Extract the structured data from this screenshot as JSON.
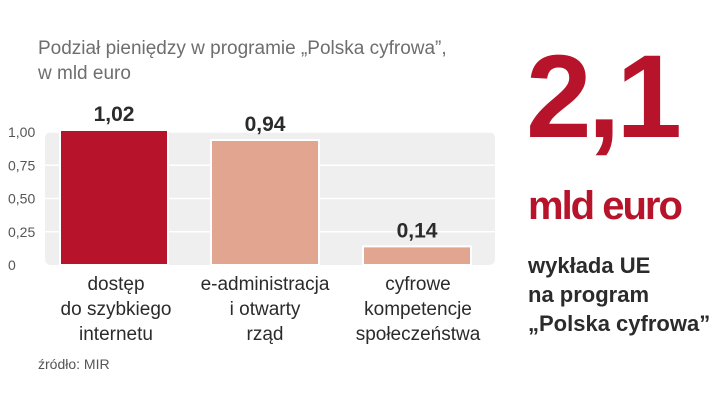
{
  "chart_data": {
    "type": "bar",
    "title_lines": [
      "Podział pieniędzy w programie „Polska cyfrowa”,",
      "w mld euro"
    ],
    "categories": [
      [
        "dostęp",
        "do szybkiego",
        "internetu"
      ],
      [
        "e-administracja",
        "i otwarty",
        "rząd"
      ],
      [
        "cyfrowe",
        "kompetencje",
        "społeczeństwa"
      ]
    ],
    "values": [
      1.02,
      0.94,
      0.14
    ],
    "value_labels": [
      "1,02",
      "0,94",
      "0,14"
    ],
    "yticks": [
      1.0,
      0.75,
      0.5,
      0.25,
      0
    ],
    "ytick_labels": [
      "1,00",
      "0,75",
      "0,50",
      "0,25",
      "0"
    ],
    "ylim": [
      0,
      1.0
    ],
    "colors": [
      "#b7142b",
      "#e2a590",
      "#e2a590"
    ],
    "background": "#efefef",
    "grid": true
  },
  "highlight": {
    "number": "2,1",
    "unit": "mld euro",
    "description_lines": [
      "wykłada UE",
      "na program",
      "„Polska cyfrowa”"
    ],
    "color": "#b7142b"
  },
  "source": "źródło: MIR"
}
